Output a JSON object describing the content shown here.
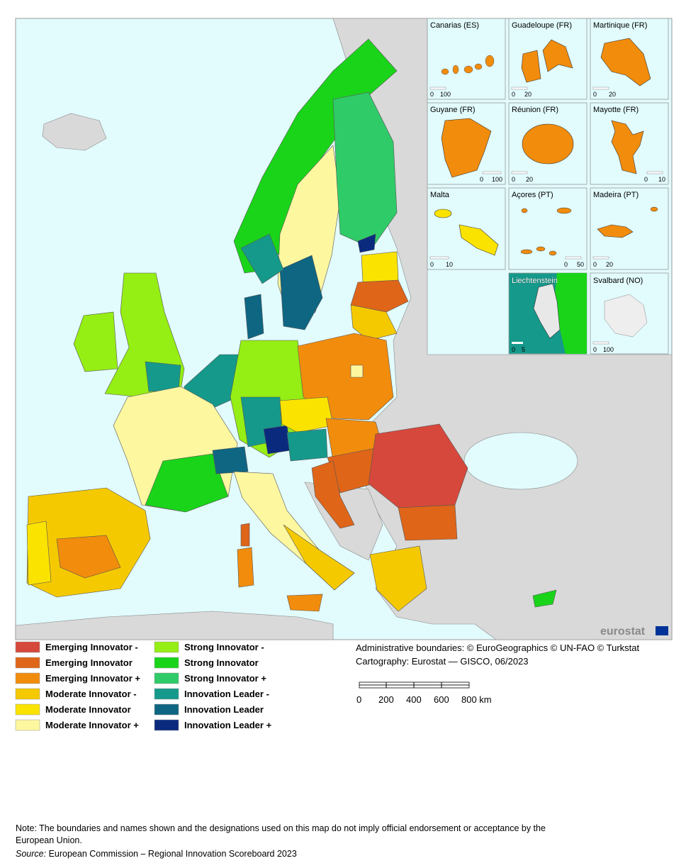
{
  "map": {
    "insets": [
      {
        "name": "Canarias (ES)",
        "scale": [
          "0",
          "100"
        ]
      },
      {
        "name": "Guadeloupe (FR)",
        "scale": [
          "0",
          "20"
        ]
      },
      {
        "name": "Martinique (FR)",
        "scale": [
          "0",
          "20"
        ]
      },
      {
        "name": "Guyane (FR)",
        "scale": [
          "0",
          "100"
        ]
      },
      {
        "name": "Réunion (FR)",
        "scale": [
          "0",
          "20"
        ]
      },
      {
        "name": "Mayotte (FR)",
        "scale": [
          "0",
          "10"
        ]
      },
      {
        "name": "Malta",
        "scale": [
          "0",
          "10"
        ]
      },
      {
        "name": "Açores (PT)",
        "scale": [
          "0",
          "50"
        ]
      },
      {
        "name": "Madeira (PT)",
        "scale": [
          "0",
          "20"
        ]
      },
      {
        "name": "Liechtenstein",
        "scale": [
          "0",
          "5"
        ]
      },
      {
        "name": "Svalbard (NO)",
        "scale": [
          "0",
          "100"
        ]
      }
    ],
    "brand": "eurostat"
  },
  "legend": [
    {
      "label": "Emerging Innovator -",
      "color": "#d6483b"
    },
    {
      "label": "Emerging Innovator",
      "color": "#df6519"
    },
    {
      "label": "Emerging Innovator +",
      "color": "#f28c0c"
    },
    {
      "label": "Moderate Innovator -",
      "color": "#f5c900"
    },
    {
      "label": "Moderate Innovator",
      "color": "#fbe300"
    },
    {
      "label": "Moderate Innovator +",
      "color": "#fdf7a0"
    },
    {
      "label": "Strong Innovator -",
      "color": "#95ee14"
    },
    {
      "label": "Strong Innovator",
      "color": "#1ad41a"
    },
    {
      "label": "Strong Innovator +",
      "color": "#2fcb68"
    },
    {
      "label": "Innovation Leader -",
      "color": "#15998b"
    },
    {
      "label": "Innovation Leader",
      "color": "#0e6682"
    },
    {
      "label": "Innovation Leader +",
      "color": "#0a2a7e"
    }
  ],
  "credits": [
    "Administrative boundaries: © EuroGeographics © UN-FAO © Turkstat",
    "Cartography: Eurostat — GISCO, 06/2023"
  ],
  "scale_bar": [
    "0",
    "200",
    "400",
    "600",
    "800 km"
  ],
  "note": [
    "Note: The boundaries and names shown and the designations used on this map do not imply official endorsement or acceptance by the",
    "European Union."
  ],
  "source": {
    "label": "Source:",
    "text": " European Commission – Regional Innovation Scoreboard 2023"
  }
}
